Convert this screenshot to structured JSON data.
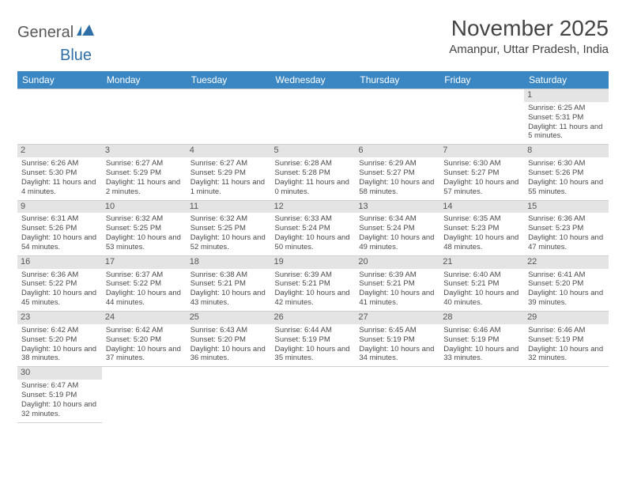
{
  "logo": {
    "text_general": "General",
    "text_blue": "Blue"
  },
  "title": "November 2025",
  "subtitle": "Amanpur, Uttar Pradesh, India",
  "colors": {
    "header_bg": "#3a87c4",
    "header_text": "#ffffff",
    "daynum_bg": "#e4e4e4",
    "border": "#cfcfcf",
    "body_text": "#4a4a4a",
    "logo_gray": "#5a5a5a",
    "logo_blue": "#2f6fa8"
  },
  "day_headers": [
    "Sunday",
    "Monday",
    "Tuesday",
    "Wednesday",
    "Thursday",
    "Friday",
    "Saturday"
  ],
  "weeks": [
    [
      null,
      null,
      null,
      null,
      null,
      null,
      {
        "n": "1",
        "sr": "6:25 AM",
        "ss": "5:31 PM",
        "dl": "11 hours and 5 minutes."
      }
    ],
    [
      {
        "n": "2",
        "sr": "6:26 AM",
        "ss": "5:30 PM",
        "dl": "11 hours and 4 minutes."
      },
      {
        "n": "3",
        "sr": "6:27 AM",
        "ss": "5:29 PM",
        "dl": "11 hours and 2 minutes."
      },
      {
        "n": "4",
        "sr": "6:27 AM",
        "ss": "5:29 PM",
        "dl": "11 hours and 1 minute."
      },
      {
        "n": "5",
        "sr": "6:28 AM",
        "ss": "5:28 PM",
        "dl": "11 hours and 0 minutes."
      },
      {
        "n": "6",
        "sr": "6:29 AM",
        "ss": "5:27 PM",
        "dl": "10 hours and 58 minutes."
      },
      {
        "n": "7",
        "sr": "6:30 AM",
        "ss": "5:27 PM",
        "dl": "10 hours and 57 minutes."
      },
      {
        "n": "8",
        "sr": "6:30 AM",
        "ss": "5:26 PM",
        "dl": "10 hours and 55 minutes."
      }
    ],
    [
      {
        "n": "9",
        "sr": "6:31 AM",
        "ss": "5:26 PM",
        "dl": "10 hours and 54 minutes."
      },
      {
        "n": "10",
        "sr": "6:32 AM",
        "ss": "5:25 PM",
        "dl": "10 hours and 53 minutes."
      },
      {
        "n": "11",
        "sr": "6:32 AM",
        "ss": "5:25 PM",
        "dl": "10 hours and 52 minutes."
      },
      {
        "n": "12",
        "sr": "6:33 AM",
        "ss": "5:24 PM",
        "dl": "10 hours and 50 minutes."
      },
      {
        "n": "13",
        "sr": "6:34 AM",
        "ss": "5:24 PM",
        "dl": "10 hours and 49 minutes."
      },
      {
        "n": "14",
        "sr": "6:35 AM",
        "ss": "5:23 PM",
        "dl": "10 hours and 48 minutes."
      },
      {
        "n": "15",
        "sr": "6:36 AM",
        "ss": "5:23 PM",
        "dl": "10 hours and 47 minutes."
      }
    ],
    [
      {
        "n": "16",
        "sr": "6:36 AM",
        "ss": "5:22 PM",
        "dl": "10 hours and 45 minutes."
      },
      {
        "n": "17",
        "sr": "6:37 AM",
        "ss": "5:22 PM",
        "dl": "10 hours and 44 minutes."
      },
      {
        "n": "18",
        "sr": "6:38 AM",
        "ss": "5:21 PM",
        "dl": "10 hours and 43 minutes."
      },
      {
        "n": "19",
        "sr": "6:39 AM",
        "ss": "5:21 PM",
        "dl": "10 hours and 42 minutes."
      },
      {
        "n": "20",
        "sr": "6:39 AM",
        "ss": "5:21 PM",
        "dl": "10 hours and 41 minutes."
      },
      {
        "n": "21",
        "sr": "6:40 AM",
        "ss": "5:21 PM",
        "dl": "10 hours and 40 minutes."
      },
      {
        "n": "22",
        "sr": "6:41 AM",
        "ss": "5:20 PM",
        "dl": "10 hours and 39 minutes."
      }
    ],
    [
      {
        "n": "23",
        "sr": "6:42 AM",
        "ss": "5:20 PM",
        "dl": "10 hours and 38 minutes."
      },
      {
        "n": "24",
        "sr": "6:42 AM",
        "ss": "5:20 PM",
        "dl": "10 hours and 37 minutes."
      },
      {
        "n": "25",
        "sr": "6:43 AM",
        "ss": "5:20 PM",
        "dl": "10 hours and 36 minutes."
      },
      {
        "n": "26",
        "sr": "6:44 AM",
        "ss": "5:19 PM",
        "dl": "10 hours and 35 minutes."
      },
      {
        "n": "27",
        "sr": "6:45 AM",
        "ss": "5:19 PM",
        "dl": "10 hours and 34 minutes."
      },
      {
        "n": "28",
        "sr": "6:46 AM",
        "ss": "5:19 PM",
        "dl": "10 hours and 33 minutes."
      },
      {
        "n": "29",
        "sr": "6:46 AM",
        "ss": "5:19 PM",
        "dl": "10 hours and 32 minutes."
      }
    ],
    [
      {
        "n": "30",
        "sr": "6:47 AM",
        "ss": "5:19 PM",
        "dl": "10 hours and 32 minutes."
      },
      null,
      null,
      null,
      null,
      null,
      null
    ]
  ]
}
